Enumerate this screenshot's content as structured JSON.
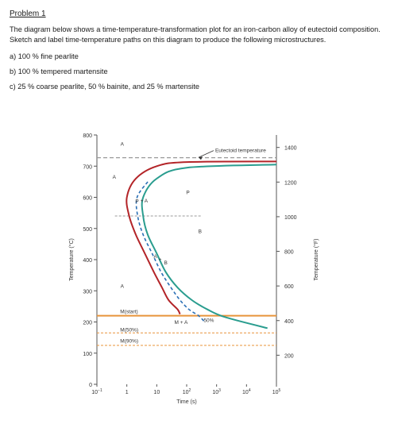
{
  "problem": {
    "title": "Problem 1",
    "intro": "The diagram below shows a time-temperature-transformation plot for an iron-carbon alloy of eutectoid composition. Sketch and label time-temperature paths on this diagram to produce the following microstructures.",
    "items": [
      "a) 100 % fine pearlite",
      "b) 100 % tempered martensite",
      "c) 25 % coarse pearlite, 50 % bainite, and 25 % martensite"
    ]
  },
  "chart_data": {
    "type": "line",
    "ylabel_left": "Temperature (°C)",
    "ylabel_right": "Temperature (°F)",
    "xlabel": "Time (s)",
    "x_scale": "log",
    "xlim": [
      0.1,
      100000
    ],
    "ylim_c": [
      0,
      800
    ],
    "x_ticks": [
      {
        "value": 0.1,
        "base": "10",
        "exp": "−1"
      },
      {
        "value": 1,
        "base": "1",
        "exp": ""
      },
      {
        "value": 10,
        "base": "10",
        "exp": ""
      },
      {
        "value": 100,
        "base": "10",
        "exp": "2"
      },
      {
        "value": 1000,
        "base": "10",
        "exp": "3"
      },
      {
        "value": 10000,
        "base": "10",
        "exp": "4"
      },
      {
        "value": 100000,
        "base": "10",
        "exp": "5"
      }
    ],
    "y_ticks_c": [
      0,
      100,
      200,
      300,
      400,
      500,
      600,
      700,
      800
    ],
    "y_ticks_f": [
      200,
      400,
      600,
      800,
      1000,
      1200,
      1400
    ],
    "colors": {
      "start": "#b32428",
      "fifty": "#2a6fb5",
      "finish": "#2a9d8f",
      "ms": "#e8943a",
      "reference": "#9a9a9a"
    },
    "eutectoid_temp": 727,
    "ms_start": 220,
    "m50": 165,
    "m90": 125,
    "series": [
      {
        "name": "start",
        "points": [
          [
            100000,
            715
          ],
          [
            100,
            713
          ],
          [
            10,
            700
          ],
          [
            2,
            660
          ],
          [
            1,
            600
          ],
          [
            1.2,
            540
          ],
          [
            2,
            480
          ],
          [
            4,
            420
          ],
          [
            8,
            360
          ],
          [
            15,
            310
          ],
          [
            25,
            270
          ],
          [
            50,
            240
          ],
          [
            60,
            225
          ]
        ]
      },
      {
        "name": "50%",
        "points": [
          [
            5,
            650
          ],
          [
            2.2,
            600
          ],
          [
            2.3,
            540
          ],
          [
            3.5,
            480
          ],
          [
            7,
            420
          ],
          [
            14,
            360
          ],
          [
            30,
            310
          ],
          [
            60,
            270
          ],
          [
            120,
            240
          ],
          [
            250,
            220
          ],
          [
            400,
            200
          ]
        ]
      },
      {
        "name": "finish",
        "points": [
          [
            100000,
            705
          ],
          [
            100,
            695
          ],
          [
            10,
            660
          ],
          [
            3.5,
            600
          ],
          [
            3.5,
            540
          ],
          [
            5,
            480
          ],
          [
            10,
            420
          ],
          [
            20,
            360
          ],
          [
            50,
            310
          ],
          [
            150,
            270
          ],
          [
            500,
            240
          ],
          [
            2000,
            215
          ],
          [
            50000,
            180
          ]
        ]
      }
    ],
    "region_labels": [
      {
        "text": "A",
        "x": 0.7,
        "y": 765
      },
      {
        "text": "A",
        "x": 0.38,
        "y": 660
      },
      {
        "text": "P",
        "x": 110,
        "y": 610
      },
      {
        "text": "P",
        "x": 2.2,
        "y": 582
      },
      {
        "text": "+",
        "x": 3.2,
        "y": 583
      },
      {
        "text": "A",
        "x": 4.4,
        "y": 584
      },
      {
        "text": "B",
        "x": 280,
        "y": 485
      },
      {
        "text": "A",
        "x": 9,
        "y": 405
      },
      {
        "text": "+",
        "x": 13,
        "y": 395
      },
      {
        "text": "B",
        "x": 20,
        "y": 385
      },
      {
        "text": "A",
        "x": 0.7,
        "y": 310
      },
      {
        "text": "M + A",
        "x": 65,
        "y": 193
      },
      {
        "text": "50%",
        "x": 550,
        "y": 200
      }
    ],
    "annotations": [
      {
        "text": "Eutectoid temperature",
        "x": 900,
        "y": 745
      },
      {
        "text": "M(start)",
        "x": 0.6,
        "y": 228
      },
      {
        "text": "M(50%)",
        "x": 0.6,
        "y": 170
      },
      {
        "text": "M(90%)",
        "x": 0.6,
        "y": 134
      }
    ]
  }
}
